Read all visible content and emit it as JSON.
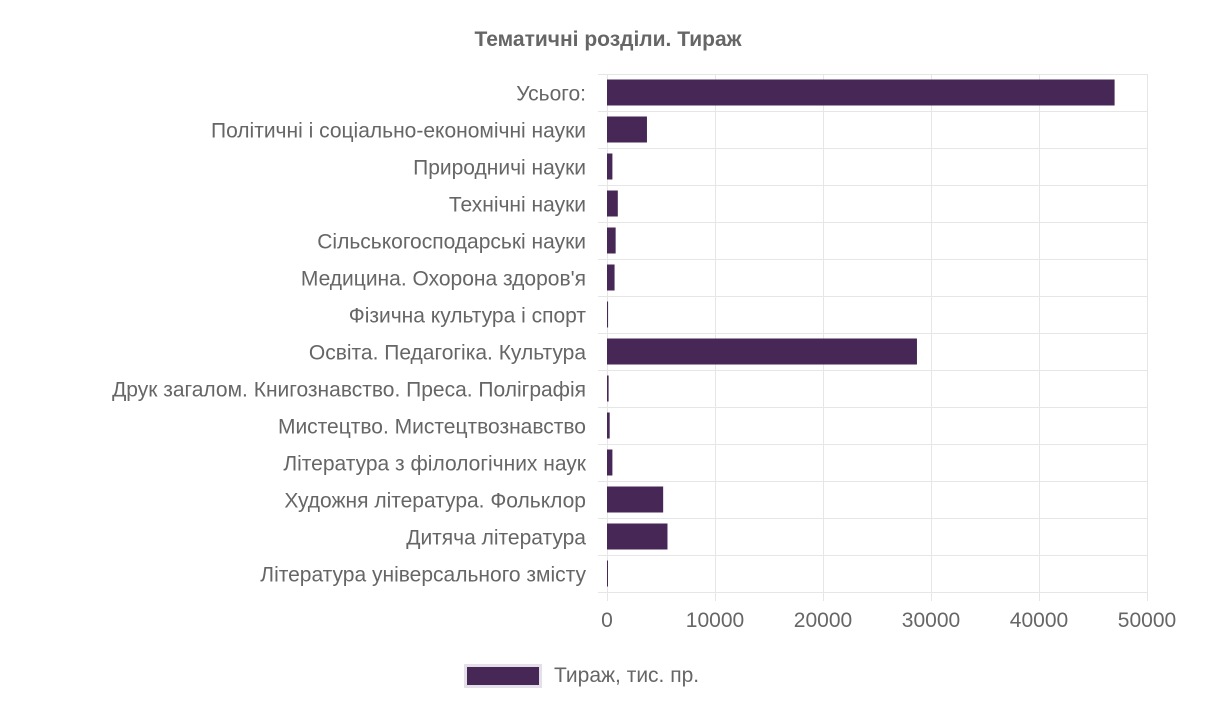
{
  "chart_data": {
    "type": "bar",
    "orientation": "horizontal",
    "title": "Тематичні розділи. Тираж",
    "categories": [
      "Усього:",
      "Політичні і соціально-економічні науки",
      "Природничі науки",
      "Технічні науки",
      "Сільськогосподарські науки",
      "Медицина. Охорона здоров'я",
      "Фізична культура і спорт",
      "Освіта. Педагогіка. Культура",
      "Друк загалом. Книгознавство. Преса. Поліграфія",
      "Мистецтво. Мистецтвознавство",
      "Література з філологічних наук",
      "Художня література. Фольклор",
      "Дитяча література",
      "Література універсального змісту"
    ],
    "series": [
      {
        "name": "Тираж, тис. пр.",
        "color": "#472755",
        "values": [
          47000,
          3700,
          500,
          1000,
          800,
          700,
          100,
          28700,
          150,
          250,
          500,
          5200,
          5600,
          50
        ]
      }
    ],
    "xlim": [
      0,
      50000
    ],
    "x_ticks": [
      "0",
      "10000",
      "20000",
      "30000",
      "40000",
      "50000"
    ],
    "x_tick_values": [
      0,
      10000,
      20000,
      30000,
      40000,
      50000
    ],
    "grid": true,
    "legend_position": "bottom"
  }
}
